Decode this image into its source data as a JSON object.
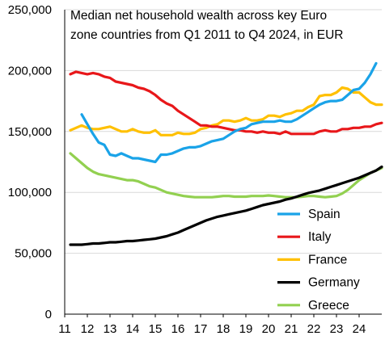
{
  "chart_data": {
    "type": "line",
    "title_lines": [
      "Median net household wealth across key Euro",
      "zone countries from Q1 2011 to Q4 2024, in EUR"
    ],
    "xlim": [
      11,
      25
    ],
    "ylim": [
      0,
      250000
    ],
    "x_ticks": [
      "11",
      "12",
      "13",
      "14",
      "15",
      "16",
      "17",
      "18",
      "19",
      "20",
      "21",
      "22",
      "23",
      "24"
    ],
    "y_ticks": [
      "0",
      "50,000",
      "100,000",
      "150,000",
      "200,000",
      "250,000"
    ],
    "grid": "horizontal",
    "legend_position": "lower-right",
    "series": [
      {
        "name": "Spain",
        "color": "#1aa3e8",
        "x": [
          11.75,
          12.0,
          12.25,
          12.5,
          12.75,
          13.0,
          13.25,
          13.5,
          13.75,
          14.0,
          14.25,
          14.5,
          14.75,
          15.0,
          15.25,
          15.5,
          15.75,
          16.0,
          16.25,
          16.5,
          16.75,
          17.0,
          17.25,
          17.5,
          17.75,
          18.0,
          18.25,
          18.5,
          18.75,
          19.0,
          19.25,
          19.5,
          19.75,
          20.0,
          20.25,
          20.5,
          20.75,
          21.0,
          21.25,
          21.5,
          21.75,
          22.0,
          22.25,
          22.5,
          22.75,
          23.0,
          23.25,
          23.5,
          23.75,
          24.0,
          24.25,
          24.5,
          24.75
        ],
        "y": [
          164000,
          156000,
          148000,
          141000,
          139000,
          131000,
          130000,
          132000,
          130000,
          128000,
          128000,
          127000,
          126000,
          125000,
          131000,
          131000,
          132000,
          134000,
          136000,
          137000,
          137000,
          138000,
          140000,
          142000,
          143000,
          144000,
          147000,
          150000,
          152000,
          153000,
          156000,
          157000,
          158000,
          158000,
          158000,
          159000,
          158000,
          158000,
          160000,
          163000,
          166000,
          169000,
          172000,
          174000,
          175000,
          175000,
          176000,
          180000,
          184000,
          185000,
          190000,
          197000,
          206000
        ]
      },
      {
        "name": "Italy",
        "color": "#e8171a",
        "x": [
          11.25,
          11.5,
          11.75,
          12.0,
          12.25,
          12.5,
          12.75,
          13.0,
          13.25,
          13.5,
          13.75,
          14.0,
          14.25,
          14.5,
          14.75,
          15.0,
          15.25,
          15.5,
          15.75,
          16.0,
          16.25,
          16.5,
          16.75,
          17.0,
          17.25,
          17.5,
          17.75,
          18.0,
          18.25,
          18.5,
          18.75,
          19.0,
          19.25,
          19.5,
          19.75,
          20.0,
          20.25,
          20.5,
          20.75,
          21.0,
          21.25,
          21.5,
          21.75,
          22.0,
          22.25,
          22.5,
          22.75,
          23.0,
          23.25,
          23.5,
          23.75,
          24.0,
          24.25,
          24.5,
          24.75
        ],
        "y": [
          197000,
          199000,
          198000,
          197000,
          198000,
          197000,
          195000,
          194000,
          191000,
          190000,
          189000,
          188000,
          186000,
          185000,
          183000,
          180000,
          176000,
          173000,
          171000,
          167000,
          164000,
          161000,
          158000,
          155000,
          155000,
          154000,
          154000,
          153000,
          152000,
          151000,
          151000,
          150000,
          150000,
          149000,
          150000,
          149000,
          149000,
          148000,
          150000,
          148000,
          148000,
          148000,
          148000,
          148000,
          150000,
          151000,
          150000,
          150000,
          152000,
          152000,
          153000,
          153000,
          154000,
          154000,
          156000
        ],
        "end": [
          25.0,
          157000
        ]
      },
      {
        "name": "France",
        "color": "#ffc000",
        "x": [
          11.25,
          11.5,
          11.75,
          12.0,
          12.25,
          12.5,
          12.75,
          13.0,
          13.25,
          13.5,
          13.75,
          14.0,
          14.25,
          14.5,
          14.75,
          15.0,
          15.25,
          15.5,
          15.75,
          16.0,
          16.25,
          16.5,
          16.75,
          17.0,
          17.25,
          17.5,
          17.75,
          18.0,
          18.25,
          18.5,
          18.75,
          19.0,
          19.25,
          19.5,
          19.75,
          20.0,
          20.25,
          20.5,
          20.75,
          21.0,
          21.25,
          21.5,
          21.75,
          22.0,
          22.25,
          22.5,
          22.75,
          23.0,
          23.25,
          23.5,
          23.75,
          24.0,
          24.25,
          24.5,
          24.75
        ],
        "y": [
          151000,
          153000,
          155000,
          153000,
          152000,
          152000,
          153000,
          154000,
          152000,
          150000,
          150000,
          152000,
          150000,
          149000,
          149000,
          151000,
          147000,
          147000,
          147000,
          149000,
          148000,
          148000,
          149000,
          152000,
          153000,
          155000,
          156000,
          159000,
          159000,
          158000,
          159000,
          161000,
          159000,
          159000,
          160000,
          163000,
          163000,
          162000,
          164000,
          165000,
          167000,
          167000,
          170000,
          172000,
          179000,
          180000,
          180000,
          182000,
          186000,
          185000,
          182000,
          182000,
          178000,
          174000,
          172000
        ],
        "end": [
          25.0,
          172000
        ]
      },
      {
        "name": "Germany",
        "color": "#000000",
        "x": [
          11.25,
          11.5,
          11.75,
          12.0,
          12.25,
          12.5,
          12.75,
          13.0,
          13.25,
          13.5,
          13.75,
          14.0,
          14.25,
          14.5,
          14.75,
          15.0,
          15.25,
          15.5,
          15.75,
          16.0,
          16.25,
          16.5,
          16.75,
          17.0,
          17.25,
          17.5,
          17.75,
          18.0,
          18.25,
          18.5,
          18.75,
          19.0,
          19.25,
          19.5,
          19.75,
          20.0,
          20.25,
          20.5,
          20.75,
          21.0,
          21.25,
          21.5,
          21.75,
          22.0,
          22.25,
          22.5,
          22.75,
          23.0,
          23.25,
          23.5,
          23.75,
          24.0,
          24.25,
          24.5,
          24.75
        ],
        "y": [
          57000,
          57000,
          57000,
          57500,
          58000,
          58000,
          58500,
          59000,
          59000,
          59500,
          60000,
          60000,
          60500,
          61000,
          61500,
          62000,
          63000,
          64000,
          65500,
          67000,
          69000,
          71000,
          73000,
          75000,
          77000,
          78500,
          80000,
          81000,
          82000,
          83000,
          84000,
          85000,
          86500,
          88000,
          89500,
          90500,
          91500,
          92500,
          94000,
          95000,
          96500,
          98000,
          99500,
          100500,
          101500,
          103000,
          104500,
          106000,
          107500,
          109000,
          110500,
          112000,
          114000,
          116000,
          118000
        ],
        "end": [
          25.0,
          121000
        ]
      },
      {
        "name": "Greece",
        "color": "#92d050",
        "x": [
          11.25,
          11.5,
          11.75,
          12.0,
          12.25,
          12.5,
          12.75,
          13.0,
          13.25,
          13.5,
          13.75,
          14.0,
          14.25,
          14.5,
          14.75,
          15.0,
          15.25,
          15.5,
          15.75,
          16.0,
          16.25,
          16.5,
          16.75,
          17.0,
          17.25,
          17.5,
          17.75,
          18.0,
          18.25,
          18.5,
          18.75,
          19.0,
          19.25,
          19.5,
          19.75,
          20.0,
          20.25,
          20.5,
          20.75,
          21.0,
          21.25,
          21.5,
          21.75,
          22.0,
          22.25,
          22.5,
          22.75,
          23.0,
          23.25,
          23.5,
          23.75,
          24.0,
          24.25,
          24.5,
          24.75
        ],
        "y": [
          132000,
          128000,
          124000,
          120000,
          117000,
          115000,
          114000,
          113000,
          112000,
          111000,
          110000,
          110000,
          109000,
          107000,
          105000,
          104000,
          102000,
          100000,
          99000,
          98000,
          97000,
          96500,
          96000,
          96000,
          96000,
          96000,
          96500,
          97000,
          97000,
          96500,
          96500,
          96500,
          97000,
          97000,
          97000,
          97500,
          97000,
          96500,
          96000,
          96000,
          96000,
          96500,
          97000,
          97000,
          96500,
          96000,
          96500,
          97000,
          99000,
          102000,
          106000,
          110000,
          113000,
          116000,
          118000
        ],
        "end": [
          25.0,
          120000
        ]
      }
    ]
  }
}
